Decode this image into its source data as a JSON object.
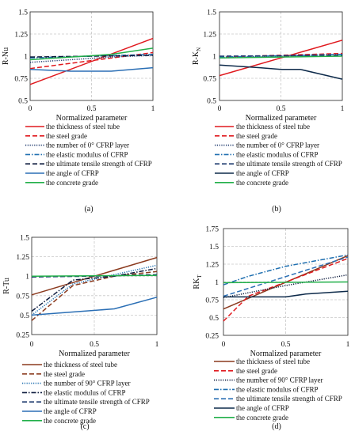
{
  "chart_data": [
    {
      "panel": "(a)",
      "type": "line",
      "xlabel": "Normalized parameter",
      "ylabel": "R-Nu",
      "xlim": [
        0,
        1
      ],
      "ylim": [
        0.5,
        1.5
      ],
      "xticks": [
        "0",
        "0.5",
        "1"
      ],
      "yticks": [
        "0.5",
        "0.75",
        "1",
        "1.25",
        "1.5"
      ],
      "grid": true,
      "legend_position": "below",
      "series": [
        {
          "name": "the thickness of steel tube",
          "color": "#e0191e",
          "dash": "solid",
          "x": [
            0,
            1
          ],
          "y": [
            0.68,
            1.2
          ]
        },
        {
          "name": "the steel grade",
          "color": "#e0191e",
          "dash": "dashed",
          "x": [
            0,
            1
          ],
          "y": [
            0.86,
            1.04
          ]
        },
        {
          "name": "the number of 0° CFRP layer",
          "color": "#1f3a6e",
          "dash": "dotted",
          "x": [
            0,
            0.33,
            0.66,
            1
          ],
          "y": [
            0.93,
            0.96,
            0.99,
            1.01
          ]
        },
        {
          "name": "the elastic modulus of CFRP",
          "color": "#1f6fb0",
          "dash": "dashdot",
          "x": [
            0,
            1
          ],
          "y": [
            0.98,
            1.02
          ]
        },
        {
          "name": "the ultimate tensile strength of CFRP",
          "color": "#0d1b3e",
          "dash": "dashed",
          "x": [
            0,
            1
          ],
          "y": [
            0.99,
            1.01
          ]
        },
        {
          "name": "the angle of CFRP",
          "color": "#2b6fb5",
          "dash": "solid",
          "x": [
            0,
            0.33,
            0.66,
            1
          ],
          "y": [
            0.85,
            0.83,
            0.83,
            0.87
          ]
        },
        {
          "name": "the concrete grade",
          "color": "#22b04a",
          "dash": "solid",
          "x": [
            0,
            0.33,
            0.66,
            1
          ],
          "y": [
            0.96,
            0.99,
            1.02,
            1.09
          ]
        }
      ]
    },
    {
      "panel": "(b)",
      "type": "line",
      "xlabel": "Normalized parameter",
      "ylabel": "R-K",
      "ylabel_sub": "N",
      "xlim": [
        0,
        1
      ],
      "ylim": [
        0.5,
        1.5
      ],
      "xticks": [
        "0",
        "0.5",
        "1"
      ],
      "yticks": [
        "0.5",
        "0.75",
        "1",
        "1.25",
        "1.5"
      ],
      "grid": true,
      "legend_position": "below",
      "series": [
        {
          "name": "the thickness of steel tube",
          "color": "#e0191e",
          "dash": "solid",
          "x": [
            0,
            1
          ],
          "y": [
            0.78,
            1.18
          ]
        },
        {
          "name": "the steel grade",
          "color": "#e0191e",
          "dash": "dashed",
          "x": [
            0,
            1
          ],
          "y": [
            0.99,
            1.03
          ]
        },
        {
          "name": "the number of 0° CFRP layer",
          "color": "#1f3a6e",
          "dash": "dotted",
          "x": [
            0,
            1
          ],
          "y": [
            0.98,
            1.02
          ]
        },
        {
          "name": "the elastic modulus of CFRP",
          "color": "#1f6fb0",
          "dash": "dashdot",
          "x": [
            0,
            1
          ],
          "y": [
            0.99,
            1.02
          ]
        },
        {
          "name": "the ultimate tensile strength of CFRP",
          "color": "#1f3a6e",
          "dash": "dashed",
          "x": [
            0,
            1
          ],
          "y": [
            1.0,
            1.01
          ]
        },
        {
          "name": "the angle of CFRP",
          "color": "#0d2a4a",
          "dash": "solid",
          "x": [
            0,
            0.33,
            0.5,
            0.66,
            1
          ],
          "y": [
            0.9,
            0.87,
            0.85,
            0.85,
            0.74
          ]
        },
        {
          "name": "the concrete grade",
          "color": "#22b04a",
          "dash": "solid",
          "x": [
            0,
            1
          ],
          "y": [
            0.98,
            1.0
          ]
        }
      ]
    },
    {
      "panel": "(c)",
      "type": "line",
      "xlabel": "Normalized parameter",
      "ylabel": "R-Tu",
      "xlim": [
        0,
        1
      ],
      "ylim": [
        0.25,
        1.5
      ],
      "xticks": [
        "0",
        "0.5",
        "1"
      ],
      "yticks": [
        "0.25",
        "0.5",
        "0.75",
        "1",
        "1.25",
        "1.5"
      ],
      "grid": true,
      "legend_position": "below",
      "series": [
        {
          "name": "the thickness of steel tube",
          "color": "#8b3a1e",
          "dash": "solid",
          "x": [
            0,
            1
          ],
          "y": [
            0.76,
            1.24
          ]
        },
        {
          "name": "the steel grade",
          "color": "#8b3a1e",
          "dash": "dashed",
          "x": [
            0,
            0.33,
            0.66,
            1
          ],
          "y": [
            0.43,
            0.88,
            1.0,
            1.06
          ]
        },
        {
          "name": "the number of 90° CFRP layer",
          "color": "#1f6fb0",
          "dash": "dotted",
          "x": [
            0,
            0.33,
            0.66,
            1
          ],
          "y": [
            0.5,
            0.9,
            1.02,
            1.14
          ]
        },
        {
          "name": "the elastic modulus of CFRP",
          "color": "#0d1b3e",
          "dash": "dashdot",
          "x": [
            0,
            0.33,
            0.66,
            1
          ],
          "y": [
            0.55,
            0.95,
            1.0,
            1.1
          ]
        },
        {
          "name": "the ultimate tensile strength of CFRP",
          "color": "#1f3a6e",
          "dash": "dashed",
          "x": [
            0,
            0.5,
            1
          ],
          "y": [
            0.99,
            1.0,
            1.02
          ]
        },
        {
          "name": "the angle of CFRP",
          "color": "#2b6fb5",
          "dash": "solid",
          "x": [
            0,
            0.66,
            1
          ],
          "y": [
            0.5,
            0.58,
            0.73
          ]
        },
        {
          "name": "the concrete grade",
          "color": "#22b04a",
          "dash": "solid",
          "x": [
            0,
            1
          ],
          "y": [
            1.0,
            1.01
          ]
        }
      ]
    },
    {
      "panel": "(d)",
      "type": "line",
      "xlabel": "Normalized parameter",
      "ylabel": "RK",
      "ylabel_sub": "T",
      "xlim": [
        0,
        1
      ],
      "ylim": [
        0.25,
        1.75
      ],
      "xticks": [
        "0",
        "0.5",
        "1"
      ],
      "yticks": [
        "0.25",
        "0.5",
        "0.75",
        "1",
        "1.25",
        "1.5",
        "1.75"
      ],
      "grid": true,
      "legend_position": "below",
      "series": [
        {
          "name": "the thickness of steel tube",
          "color": "#8b3a1e",
          "dash": "solid",
          "x": [
            0,
            1
          ],
          "y": [
            0.62,
            1.37
          ]
        },
        {
          "name": "the steel grade",
          "color": "#e0191e",
          "dash": "dashed",
          "x": [
            0,
            0.2,
            1
          ],
          "y": [
            0.45,
            0.8,
            1.33
          ]
        },
        {
          "name": "the number of 90° CFRP layer",
          "color": "#0d1b3e",
          "dash": "dotted",
          "x": [
            0,
            0.5,
            1
          ],
          "y": [
            0.78,
            0.95,
            1.1
          ]
        },
        {
          "name": "the elastic modulus of CFRP",
          "color": "#1f6fb0",
          "dash": "dashdot",
          "x": [
            0,
            0.2,
            0.5,
            1
          ],
          "y": [
            0.96,
            1.08,
            1.22,
            1.38
          ]
        },
        {
          "name": "the ultimate tensile strength of CFRP",
          "color": "#2b6fb5",
          "dash": "dashed",
          "x": [
            0,
            1
          ],
          "y": [
            0.8,
            1.35
          ]
        },
        {
          "name": "the angle of CFRP",
          "color": "#0d2a4a",
          "dash": "solid",
          "x": [
            0,
            0.5,
            0.66,
            1
          ],
          "y": [
            0.79,
            0.79,
            0.83,
            0.87
          ]
        },
        {
          "name": "the concrete grade",
          "color": "#22b04a",
          "dash": "solid",
          "x": [
            0,
            1
          ],
          "y": [
            0.99,
            1.0
          ]
        }
      ]
    }
  ]
}
